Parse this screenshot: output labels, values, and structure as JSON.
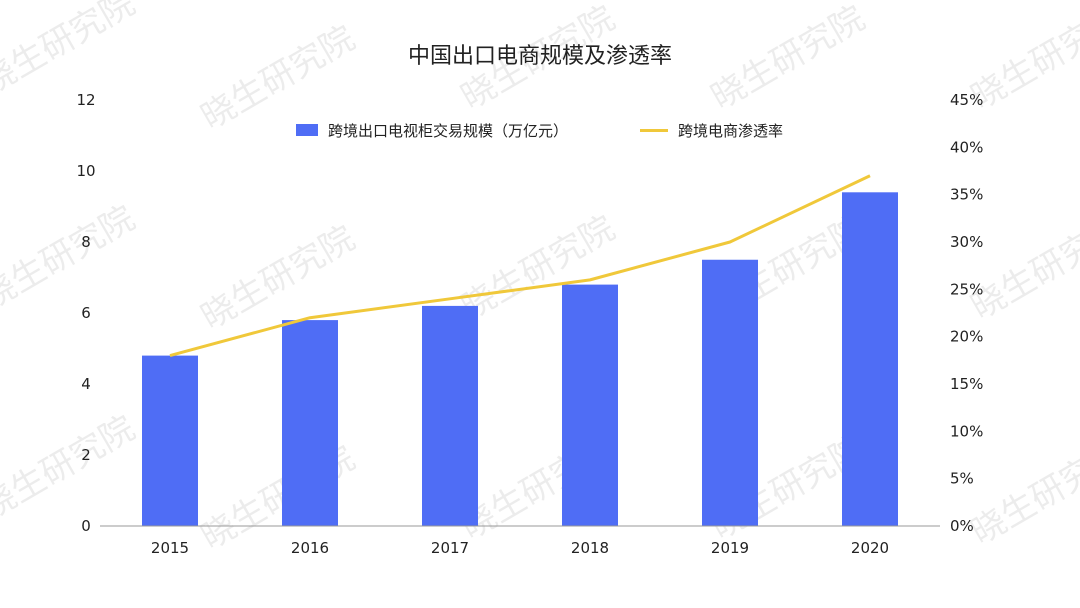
{
  "chart_data": {
    "type": "bar",
    "title": "中国出口电商规模及渗透率",
    "categories": [
      "2015",
      "2016",
      "2017",
      "2018",
      "2019",
      "2020"
    ],
    "series": [
      {
        "name": "跨境出口电视柜交易规模（万亿元）",
        "type": "bar",
        "axis": "left",
        "color": "#4f6df5",
        "values": [
          4.8,
          5.8,
          6.2,
          6.8,
          7.5,
          9.4
        ]
      },
      {
        "name": "跨境电商渗透率",
        "type": "line",
        "axis": "right",
        "color": "#f0c83a",
        "values": [
          0.18,
          0.22,
          0.24,
          0.26,
          0.3,
          0.37
        ]
      }
    ],
    "y_left": {
      "ylim": [
        0,
        12
      ],
      "ticks": [
        "0",
        "2",
        "4",
        "6",
        "8",
        "10",
        "12"
      ]
    },
    "y_right": {
      "ylim": [
        0,
        0.45
      ],
      "ticks": [
        "0%",
        "5%",
        "10%",
        "15%",
        "20%",
        "25%",
        "30%",
        "35%",
        "40%",
        "45%"
      ]
    },
    "grid": false,
    "legend": "top"
  },
  "watermark": "晓生研究院"
}
